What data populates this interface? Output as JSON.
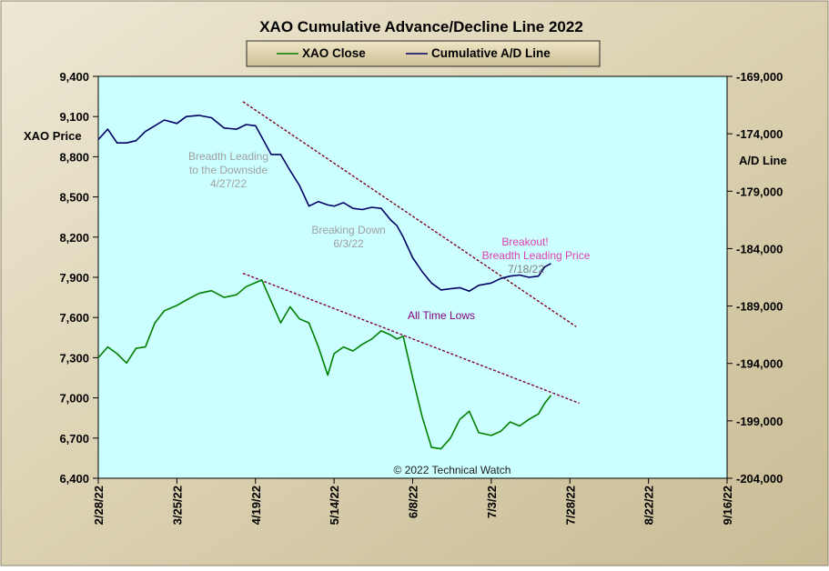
{
  "chart_data": {
    "type": "line",
    "title": "XAO Cumulative Advance/Decline Line 2022",
    "left_axis_label": "XAO Price",
    "right_axis_label": "A/D Line",
    "left_ylim": [
      6400,
      9400
    ],
    "left_ticks": [
      "9,400",
      "9,100",
      "8,800",
      "8,500",
      "8,200",
      "7,900",
      "7,600",
      "7,300",
      "7,000",
      "6,700",
      "6,400"
    ],
    "right_ylim": [
      -204000,
      -169000
    ],
    "right_ticks": [
      "-169,000",
      "-174,000",
      "-179,000",
      "-184,000",
      "-189,000",
      "-194,000",
      "-199,000",
      "-204,000"
    ],
    "x_ticks": [
      "2/28/22",
      "3/25/22",
      "4/19/22",
      "5/14/22",
      "6/8/22",
      "7/3/22",
      "7/28/22",
      "8/22/22",
      "9/16/22"
    ],
    "grid": false,
    "legend_placement": "top-center",
    "series": [
      {
        "name": "XAO Close",
        "axis": "left",
        "color": "#008000",
        "dates": [
          "2/28/22",
          "3/3/22",
          "3/6/22",
          "3/9/22",
          "3/12/22",
          "3/15/22",
          "3/18/22",
          "3/21/22",
          "3/25/22",
          "3/28/22",
          "4/1/22",
          "4/5/22",
          "4/9/22",
          "4/13/22",
          "4/16/22",
          "4/19/22",
          "4/21/22",
          "4/24/22",
          "4/27/22",
          "4/30/22",
          "5/3/22",
          "5/6/22",
          "5/9/22",
          "5/12/22",
          "5/14/22",
          "5/17/22",
          "5/20/22",
          "5/23/22",
          "5/26/22",
          "5/29/22",
          "6/1/22",
          "6/3/22",
          "6/5/22",
          "6/8/22",
          "6/11/22",
          "6/14/22",
          "6/17/22",
          "6/20/22",
          "6/23/22",
          "6/26/22",
          "6/29/22",
          "7/3/22",
          "7/6/22",
          "7/9/22",
          "7/12/22",
          "7/15/22",
          "7/18/22",
          "7/20/22",
          "7/22/22"
        ],
        "values": [
          7300,
          7380,
          7330,
          7260,
          7370,
          7380,
          7560,
          7650,
          7690,
          7730,
          7780,
          7800,
          7750,
          7770,
          7830,
          7860,
          7880,
          7720,
          7560,
          7680,
          7590,
          7560,
          7380,
          7170,
          7330,
          7380,
          7350,
          7400,
          7440,
          7500,
          7470,
          7440,
          7460,
          7150,
          6860,
          6630,
          6620,
          6700,
          6840,
          6900,
          6740,
          6720,
          6750,
          6820,
          6790,
          6840,
          6880,
          6960,
          7020
        ]
      },
      {
        "name": "Cumulative A/D Line",
        "axis": "right",
        "color": "#000066",
        "dates": [
          "2/28/22",
          "3/3/22",
          "3/6/22",
          "3/9/22",
          "3/12/22",
          "3/15/22",
          "3/18/22",
          "3/21/22",
          "3/25/22",
          "3/28/22",
          "4/1/22",
          "4/5/22",
          "4/9/22",
          "4/13/22",
          "4/16/22",
          "4/19/22",
          "4/21/22",
          "4/24/22",
          "4/27/22",
          "4/30/22",
          "5/3/22",
          "5/6/22",
          "5/9/22",
          "5/12/22",
          "5/14/22",
          "5/17/22",
          "5/20/22",
          "5/23/22",
          "5/26/22",
          "5/29/22",
          "6/1/22",
          "6/3/22",
          "6/5/22",
          "6/8/22",
          "6/11/22",
          "6/14/22",
          "6/17/22",
          "6/20/22",
          "6/23/22",
          "6/26/22",
          "6/29/22",
          "7/3/22",
          "7/6/22",
          "7/9/22",
          "7/12/22",
          "7/15/22",
          "7/18/22",
          "7/20/22",
          "7/22/22"
        ],
        "values": [
          -174500,
          -173600,
          -174800,
          -174800,
          -174600,
          -173800,
          -173300,
          -172800,
          -173100,
          -172500,
          -172400,
          -172600,
          -173500,
          -173600,
          -173200,
          -173300,
          -174300,
          -175800,
          -175800,
          -177200,
          -178500,
          -180300,
          -179900,
          -180200,
          -180300,
          -180000,
          -180500,
          -180600,
          -180400,
          -180500,
          -181500,
          -182000,
          -183000,
          -184800,
          -186000,
          -187000,
          -187600,
          -187500,
          -187400,
          -187700,
          -187200,
          -187000,
          -186600,
          -186400,
          -186300,
          -186500,
          -186400,
          -185600,
          -185300
        ]
      }
    ],
    "annotations": [
      {
        "text": "Breadth Leading to the Downside 4/27/22",
        "lines": [
          "Breadth  Leading",
          "to the Downside",
          "4/27/22"
        ],
        "color": "#A0A0A0"
      },
      {
        "text": "Breaking Down 6/3/22",
        "lines": [
          "Breaking  Down",
          "6/3/22"
        ],
        "color": "#A0A0A0"
      },
      {
        "text": "Breakout! Breadth Leading Price",
        "lines": [
          "Breakout!",
          "Breadth  Leading  Price"
        ],
        "color": "#E040B0"
      },
      {
        "text": "7/18/22",
        "lines": [
          "7/18/22"
        ],
        "color": "#808080"
      },
      {
        "text": "All Time Lows",
        "lines": [
          "All Time Lows"
        ],
        "color": "#800080"
      },
      {
        "text": "© 2022 Technical Watch",
        "lines": [
          "© 2022 Technical Watch"
        ],
        "color": "#202020"
      }
    ],
    "trendlines": [
      {
        "name": "A/D downtrend",
        "axis": "right",
        "from": {
          "date": "4/15/22",
          "value": -171200
        },
        "to": {
          "date": "7/30/22",
          "value": -190800
        },
        "color": "#800020"
      },
      {
        "name": "Price downtrend",
        "axis": "left",
        "from": {
          "date": "4/15/22",
          "value": 7930
        },
        "to": {
          "date": "7/31/22",
          "value": 6960
        },
        "color": "#800040"
      }
    ],
    "colors": {
      "plot_background": "#CCFFFF",
      "frame_background": "#DCD4B8"
    }
  }
}
